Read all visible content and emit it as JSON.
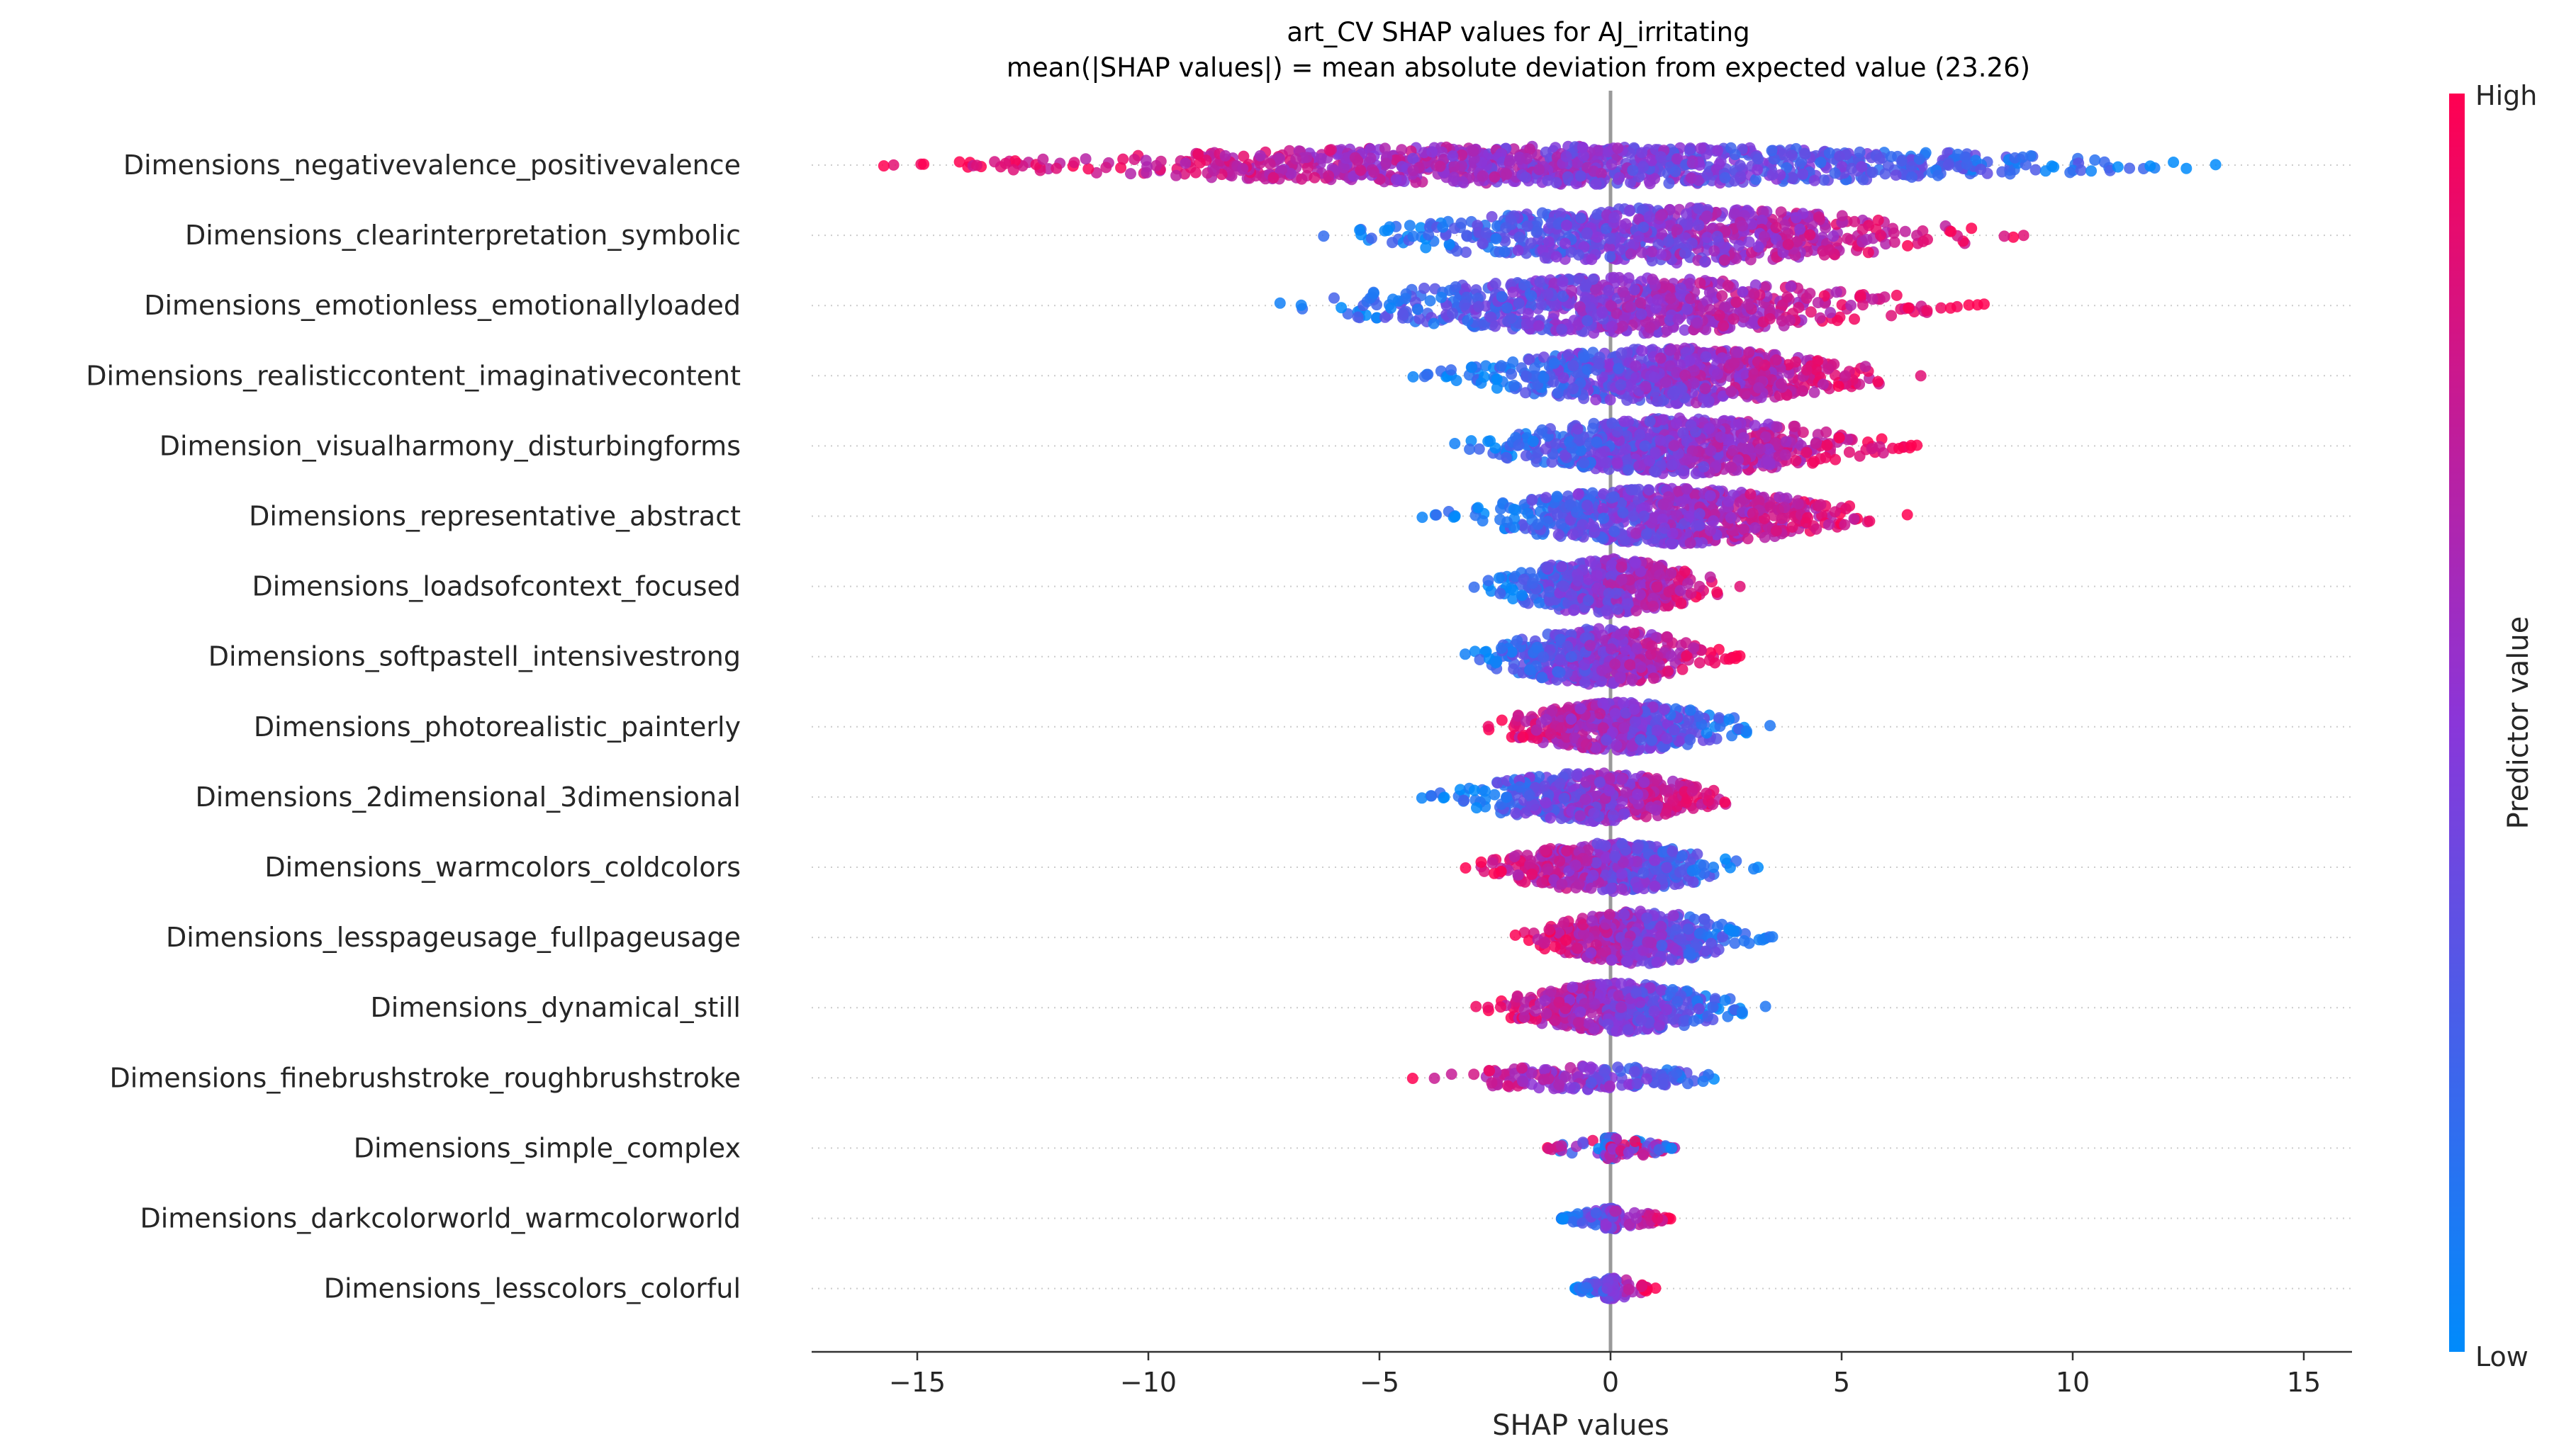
{
  "chart_data": {
    "type": "scatter",
    "title": "art_CV SHAP values for AJ_irritating",
    "subtitle": "mean(|SHAP values|) = mean absolute deviation from expected value (23.26)",
    "xlabel": "SHAP values",
    "xlim": [
      -17.2,
      16.0
    ],
    "xticks": [
      -15,
      -10,
      -5,
      0,
      5,
      10,
      15
    ],
    "xtick_labels": [
      "−15",
      "−10",
      "−5",
      "0",
      "5",
      "10",
      "15"
    ],
    "colorbar": {
      "label": "Predictor value",
      "high_label": "High",
      "low_label": "Low",
      "low_color": "#008bfb",
      "mid_color": "#8a36d9",
      "high_color": "#ff0051"
    },
    "features": [
      {
        "name": "Dimensions_negativevalence_positivevalence",
        "min": -15.8,
        "max": 14.5,
        "direction": -1,
        "width": 0.55
      },
      {
        "name": "Dimensions_clearinterpretation_symbolic",
        "min": -6.6,
        "max": 9.2,
        "direction": 1,
        "width": 0.8
      },
      {
        "name": "Dimensions_emotionless_emotionallyloaded",
        "min": -7.8,
        "max": 8.2,
        "direction": 1,
        "width": 0.8
      },
      {
        "name": "Dimensions_realisticcontent_imaginativecontent",
        "min": -4.3,
        "max": 6.9,
        "direction": 1,
        "width": 0.8
      },
      {
        "name": "Dimension_visualharmony_disturbingforms",
        "min": -3.8,
        "max": 6.8,
        "direction": 1,
        "width": 0.8
      },
      {
        "name": "Dimensions_representative_abstract",
        "min": -4.1,
        "max": 6.5,
        "direction": 1,
        "width": 0.8
      },
      {
        "name": "Dimensions_loadsofcontext_focused",
        "min": -3.1,
        "max": 2.9,
        "direction": 1,
        "width": 0.8
      },
      {
        "name": "Dimensions_softpastell_intensivestrong",
        "min": -3.4,
        "max": 2.9,
        "direction": 1,
        "width": 0.8
      },
      {
        "name": "Dimensions_photorealistic_painterly",
        "min": -3.1,
        "max": 3.5,
        "direction": -1,
        "width": 0.7
      },
      {
        "name": "Dimensions_2dimensional_3dimensional",
        "min": -4.1,
        "max": 3.2,
        "direction": 1,
        "width": 0.7
      },
      {
        "name": "Dimensions_warmcolors_coldcolors",
        "min": -3.3,
        "max": 3.3,
        "direction": -1,
        "width": 0.7
      },
      {
        "name": "Dimensions_lesspageusage_fullpageusage",
        "min": -2.3,
        "max": 3.6,
        "direction": -1,
        "width": 0.75
      },
      {
        "name": "Dimensions_dynamical_still",
        "min": -3.1,
        "max": 3.4,
        "direction": -1,
        "width": 0.7
      },
      {
        "name": "Dimensions_finebrushstroke_roughbrushstroke",
        "min": -4.3,
        "max": 3.1,
        "direction": -1,
        "width": 0.35
      },
      {
        "name": "Dimensions_simple_complex",
        "min": -1.4,
        "max": 1.4,
        "direction": 0,
        "width": 0.3
      },
      {
        "name": "Dimensions_darkcolorworld_warmcolorworld",
        "min": -1.1,
        "max": 1.3,
        "direction": 1,
        "width": 0.3
      },
      {
        "name": "Dimensions_lesscolors_colorful",
        "min": -0.8,
        "max": 1.0,
        "direction": 1,
        "width": 0.3
      }
    ]
  }
}
